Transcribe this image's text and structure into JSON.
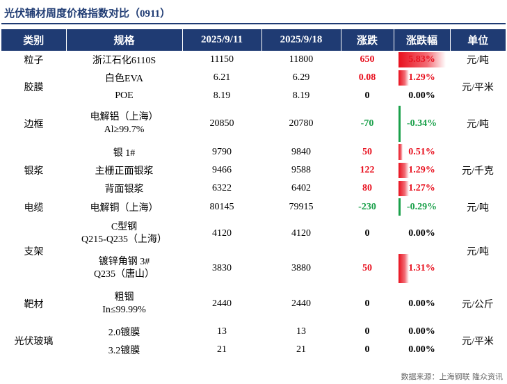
{
  "title": "光伏辅材周度价格指数对比（0911）",
  "headers": [
    "类别",
    "规格",
    "2025/9/11",
    "2025/9/18",
    "涨跌",
    "涨跌幅",
    "单位"
  ],
  "rows": [
    {
      "category": "粒子",
      "spec": [
        "浙江石化6110S"
      ],
      "p1": "11150",
      "p2": "11800",
      "chg": "650",
      "pct": "5.83%",
      "pct_value": 5.83,
      "dir": "up",
      "unit": "元/吨"
    },
    {
      "category": "胶膜",
      "spec": [
        "白色EVA"
      ],
      "p1": "6.21",
      "p2": "6.29",
      "chg": "0.08",
      "pct": "1.29%",
      "pct_value": 1.29,
      "dir": "up",
      "unit": "元/平米"
    },
    {
      "category": "",
      "spec": [
        "POE"
      ],
      "p1": "8.19",
      "p2": "8.19",
      "chg": "0",
      "pct": "0.00%",
      "pct_value": 0,
      "dir": "flat",
      "unit": ""
    },
    {
      "category": "边框",
      "spec": [
        "电解铝（上海）",
        "Al≥99.7%"
      ],
      "p1": "20850",
      "p2": "20780",
      "chg": "-70",
      "pct": "-0.34%",
      "pct_value": -0.34,
      "dir": "down",
      "unit": "元/吨"
    },
    {
      "category": "银浆",
      "spec": [
        "银 1#"
      ],
      "p1": "9790",
      "p2": "9840",
      "chg": "50",
      "pct": "0.51%",
      "pct_value": 0.51,
      "dir": "up",
      "unit": "元/千克"
    },
    {
      "category": "",
      "spec": [
        "主栅正面银浆"
      ],
      "p1": "9466",
      "p2": "9588",
      "chg": "122",
      "pct": "1.29%",
      "pct_value": 1.29,
      "dir": "up",
      "unit": ""
    },
    {
      "category": "",
      "spec": [
        "背面银浆"
      ],
      "p1": "6322",
      "p2": "6402",
      "chg": "80",
      "pct": "1.27%",
      "pct_value": 1.27,
      "dir": "up",
      "unit": ""
    },
    {
      "category": "电缆",
      "spec": [
        "电解铜（上海）"
      ],
      "p1": "80145",
      "p2": "79915",
      "chg": "-230",
      "pct": "-0.29%",
      "pct_value": -0.29,
      "dir": "down",
      "unit": "元/吨"
    },
    {
      "category": "支架",
      "spec": [
        "C型钢",
        "Q215-Q235（上海）"
      ],
      "p1": "4120",
      "p2": "4120",
      "chg": "0",
      "pct": "0.00%",
      "pct_value": 0,
      "dir": "flat",
      "unit": "元/吨"
    },
    {
      "category": "",
      "spec": [
        "镀锌角钢 3#",
        "Q235（唐山）"
      ],
      "p1": "3830",
      "p2": "3880",
      "chg": "50",
      "pct": "1.31%",
      "pct_value": 1.31,
      "dir": "up",
      "unit": ""
    },
    {
      "category": "靶材",
      "spec": [
        "粗铟",
        "In≤99.99%"
      ],
      "p1": "2440",
      "p2": "2440",
      "chg": "0",
      "pct": "0.00%",
      "pct_value": 0,
      "dir": "flat",
      "unit": "元/公斤"
    },
    {
      "category": "光伏玻璃",
      "spec": [
        "2.0镀膜"
      ],
      "p1": "13",
      "p2": "13",
      "chg": "0",
      "pct": "0.00%",
      "pct_value": 0,
      "dir": "flat",
      "unit": "元/平米"
    },
    {
      "category": "",
      "spec": [
        "3.2镀膜"
      ],
      "p1": "21",
      "p2": "21",
      "chg": "0",
      "pct": "0.00%",
      "pct_value": 0,
      "dir": "flat",
      "unit": ""
    }
  ],
  "source": "数据来源：上海钢联 隆众资讯",
  "colors": {
    "header_bg": "#1f3b73",
    "up": "#e8101e",
    "down": "#1aa04a"
  }
}
